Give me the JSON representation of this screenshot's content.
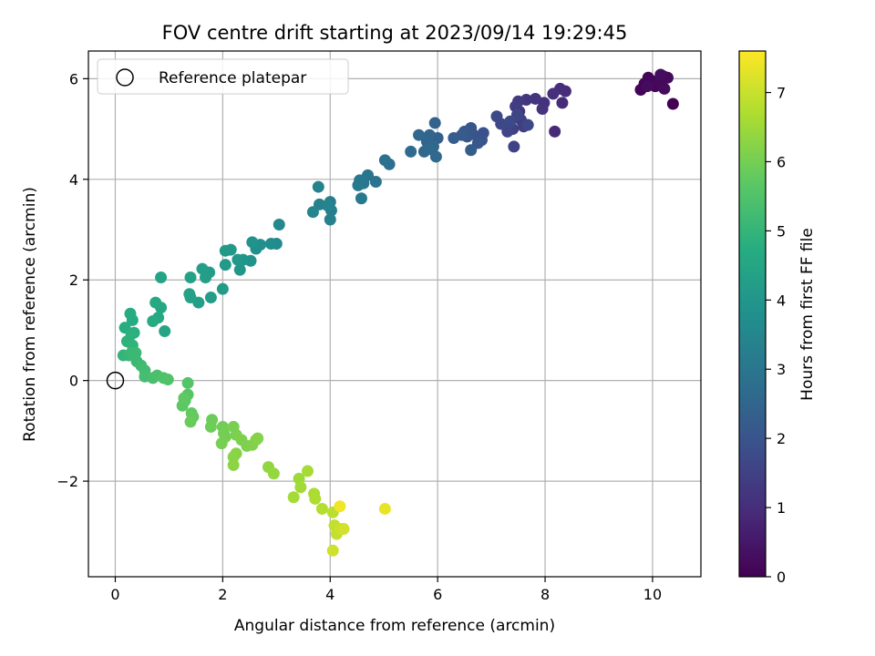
{
  "chart_data": {
    "type": "scatter",
    "title": "FOV centre drift starting at 2023/09/14 19:29:45",
    "xlabel": "Angular distance from reference (arcmin)",
    "ylabel": "Rotation from reference (arcmin)",
    "xlim": [
      -0.5,
      10.9
    ],
    "ylim": [
      -3.9,
      6.55
    ],
    "xticks": [
      0,
      2,
      4,
      6,
      8,
      10
    ],
    "yticks": [
      -2,
      0,
      2,
      4,
      6
    ],
    "xtick_labels": [
      "0",
      "2",
      "4",
      "6",
      "8",
      "10"
    ],
    "ytick_labels": [
      "−2",
      "0",
      "2",
      "4",
      "6"
    ],
    "grid": true,
    "legend": {
      "position": "top-left",
      "entries": [
        {
          "label": "Reference platepar",
          "marker": "hollow-circle"
        }
      ]
    },
    "reference_point": {
      "x": 0,
      "y": 0
    },
    "colorbar": {
      "label": "Hours from first FF file",
      "colormap": "viridis",
      "range": [
        0,
        7.6
      ],
      "ticks": [
        0,
        1,
        2,
        3,
        4,
        5,
        6,
        7
      ],
      "tick_labels": [
        "0",
        "1",
        "2",
        "3",
        "4",
        "5",
        "6",
        "7"
      ]
    },
    "series": [
      {
        "points": [
          {
            "x": 10.38,
            "y": 5.5,
            "c": 0.0
          },
          {
            "x": 9.78,
            "y": 5.78,
            "c": 0.05
          },
          {
            "x": 9.85,
            "y": 5.9,
            "c": 0.08
          },
          {
            "x": 9.92,
            "y": 6.02,
            "c": 0.1
          },
          {
            "x": 10.0,
            "y": 5.95,
            "c": 0.12
          },
          {
            "x": 10.05,
            "y": 5.85,
            "c": 0.14
          },
          {
            "x": 10.12,
            "y": 5.92,
            "c": 0.16
          },
          {
            "x": 10.2,
            "y": 6.05,
            "c": 0.18
          },
          {
            "x": 10.28,
            "y": 6.02,
            "c": 0.2
          },
          {
            "x": 10.22,
            "y": 5.8,
            "c": 0.22
          },
          {
            "x": 9.9,
            "y": 5.85,
            "c": 0.24
          },
          {
            "x": 10.15,
            "y": 6.08,
            "c": 0.26
          },
          {
            "x": 8.18,
            "y": 4.95,
            "c": 0.9
          },
          {
            "x": 8.32,
            "y": 5.52,
            "c": 0.95
          },
          {
            "x": 8.38,
            "y": 5.75,
            "c": 0.98
          },
          {
            "x": 8.28,
            "y": 5.8,
            "c": 1.0
          },
          {
            "x": 8.15,
            "y": 5.7,
            "c": 1.05
          },
          {
            "x": 7.98,
            "y": 5.52,
            "c": 1.1
          },
          {
            "x": 7.95,
            "y": 5.4,
            "c": 1.12
          },
          {
            "x": 7.82,
            "y": 5.6,
            "c": 1.15
          },
          {
            "x": 7.65,
            "y": 5.58,
            "c": 1.2
          },
          {
            "x": 7.52,
            "y": 5.35,
            "c": 1.25
          },
          {
            "x": 7.5,
            "y": 5.55,
            "c": 1.3
          },
          {
            "x": 7.45,
            "y": 5.45,
            "c": 1.35
          },
          {
            "x": 7.55,
            "y": 5.18,
            "c": 1.4
          },
          {
            "x": 7.6,
            "y": 5.05,
            "c": 1.45
          },
          {
            "x": 7.4,
            "y": 5.0,
            "c": 1.5
          },
          {
            "x": 7.42,
            "y": 4.65,
            "c": 1.55
          },
          {
            "x": 7.3,
            "y": 4.95,
            "c": 1.6
          },
          {
            "x": 7.18,
            "y": 5.1,
            "c": 1.65
          },
          {
            "x": 7.1,
            "y": 5.25,
            "c": 1.7
          },
          {
            "x": 7.48,
            "y": 5.28,
            "c": 1.62
          },
          {
            "x": 7.68,
            "y": 5.08,
            "c": 1.68
          },
          {
            "x": 7.35,
            "y": 5.15,
            "c": 1.72
          },
          {
            "x": 6.85,
            "y": 4.92,
            "c": 1.9
          },
          {
            "x": 6.82,
            "y": 4.78,
            "c": 1.95
          },
          {
            "x": 6.65,
            "y": 4.9,
            "c": 2.0
          },
          {
            "x": 6.62,
            "y": 5.02,
            "c": 2.05
          },
          {
            "x": 6.55,
            "y": 4.85,
            "c": 2.1
          },
          {
            "x": 6.5,
            "y": 4.95,
            "c": 2.15
          },
          {
            "x": 6.45,
            "y": 4.88,
            "c": 2.2
          },
          {
            "x": 6.62,
            "y": 4.58,
            "c": 2.25
          },
          {
            "x": 6.75,
            "y": 4.72,
            "c": 2.12
          },
          {
            "x": 6.3,
            "y": 4.82,
            "c": 2.3
          },
          {
            "x": 6.0,
            "y": 4.82,
            "c": 2.35
          },
          {
            "x": 5.95,
            "y": 5.12,
            "c": 2.4
          },
          {
            "x": 5.85,
            "y": 4.88,
            "c": 2.45
          },
          {
            "x": 5.8,
            "y": 4.75,
            "c": 2.5
          },
          {
            "x": 5.75,
            "y": 4.55,
            "c": 2.55
          },
          {
            "x": 5.65,
            "y": 4.88,
            "c": 2.6
          },
          {
            "x": 5.92,
            "y": 4.65,
            "c": 2.58
          },
          {
            "x": 5.97,
            "y": 4.45,
            "c": 2.62
          },
          {
            "x": 5.85,
            "y": 4.6,
            "c": 2.65
          },
          {
            "x": 5.5,
            "y": 4.55,
            "c": 2.7
          },
          {
            "x": 5.1,
            "y": 4.3,
            "c": 2.8
          },
          {
            "x": 5.02,
            "y": 4.38,
            "c": 2.85
          },
          {
            "x": 4.85,
            "y": 3.95,
            "c": 2.9
          },
          {
            "x": 4.7,
            "y": 4.08,
            "c": 2.95
          },
          {
            "x": 4.62,
            "y": 3.92,
            "c": 3.0
          },
          {
            "x": 4.55,
            "y": 3.98,
            "c": 3.05
          },
          {
            "x": 4.58,
            "y": 3.62,
            "c": 3.08
          },
          {
            "x": 4.52,
            "y": 3.88,
            "c": 3.1
          },
          {
            "x": 4.0,
            "y": 3.55,
            "c": 3.2
          },
          {
            "x": 4.02,
            "y": 3.38,
            "c": 3.25
          },
          {
            "x": 4.0,
            "y": 3.2,
            "c": 3.3
          },
          {
            "x": 3.8,
            "y": 3.5,
            "c": 3.35
          },
          {
            "x": 3.78,
            "y": 3.85,
            "c": 3.4
          },
          {
            "x": 3.68,
            "y": 3.35,
            "c": 3.45
          },
          {
            "x": 3.95,
            "y": 3.48,
            "c": 3.42
          },
          {
            "x": 3.05,
            "y": 3.1,
            "c": 3.6
          },
          {
            "x": 3.0,
            "y": 2.72,
            "c": 3.65
          },
          {
            "x": 2.9,
            "y": 2.72,
            "c": 3.7
          },
          {
            "x": 2.7,
            "y": 2.7,
            "c": 3.75
          },
          {
            "x": 2.62,
            "y": 2.62,
            "c": 3.8
          },
          {
            "x": 2.55,
            "y": 2.75,
            "c": 3.85
          },
          {
            "x": 2.52,
            "y": 2.38,
            "c": 3.9
          },
          {
            "x": 2.38,
            "y": 2.4,
            "c": 3.95
          },
          {
            "x": 2.32,
            "y": 2.2,
            "c": 4.0
          },
          {
            "x": 2.28,
            "y": 2.4,
            "c": 4.02
          },
          {
            "x": 2.15,
            "y": 2.6,
            "c": 4.05
          },
          {
            "x": 2.05,
            "y": 2.58,
            "c": 4.08
          },
          {
            "x": 2.05,
            "y": 2.3,
            "c": 4.1
          },
          {
            "x": 2.0,
            "y": 1.82,
            "c": 4.15
          },
          {
            "x": 1.78,
            "y": 1.65,
            "c": 4.2
          },
          {
            "x": 1.75,
            "y": 2.15,
            "c": 4.22
          },
          {
            "x": 1.68,
            "y": 2.05,
            "c": 4.25
          },
          {
            "x": 1.62,
            "y": 2.22,
            "c": 4.28
          },
          {
            "x": 1.55,
            "y": 1.55,
            "c": 4.3
          },
          {
            "x": 1.4,
            "y": 1.65,
            "c": 4.35
          },
          {
            "x": 1.38,
            "y": 1.72,
            "c": 4.38
          },
          {
            "x": 1.4,
            "y": 2.05,
            "c": 4.4
          },
          {
            "x": 0.85,
            "y": 2.05,
            "c": 4.45
          },
          {
            "x": 0.92,
            "y": 0.98,
            "c": 4.5
          },
          {
            "x": 0.85,
            "y": 1.45,
            "c": 4.55
          },
          {
            "x": 0.75,
            "y": 1.55,
            "c": 4.58
          },
          {
            "x": 0.8,
            "y": 1.25,
            "c": 4.6
          },
          {
            "x": 0.7,
            "y": 1.18,
            "c": 4.65
          },
          {
            "x": 0.32,
            "y": 1.2,
            "c": 4.7
          },
          {
            "x": 0.28,
            "y": 1.33,
            "c": 4.72
          },
          {
            "x": 0.18,
            "y": 1.05,
            "c": 4.75
          },
          {
            "x": 0.35,
            "y": 0.95,
            "c": 4.8
          },
          {
            "x": 0.3,
            "y": 0.92,
            "c": 4.85
          },
          {
            "x": 0.22,
            "y": 0.78,
            "c": 4.9
          },
          {
            "x": 0.32,
            "y": 0.7,
            "c": 4.95
          },
          {
            "x": 0.15,
            "y": 0.5,
            "c": 5.0
          },
          {
            "x": 0.25,
            "y": 0.5,
            "c": 5.05
          },
          {
            "x": 0.38,
            "y": 0.55,
            "c": 5.1
          },
          {
            "x": 0.3,
            "y": 0.55,
            "c": 5.12
          },
          {
            "x": 0.4,
            "y": 0.38,
            "c": 5.15
          },
          {
            "x": 0.48,
            "y": 0.3,
            "c": 5.2
          },
          {
            "x": 0.55,
            "y": 0.2,
            "c": 5.25
          },
          {
            "x": 0.55,
            "y": 0.08,
            "c": 5.3
          },
          {
            "x": 0.7,
            "y": 0.05,
            "c": 5.35
          },
          {
            "x": 0.78,
            "y": 0.1,
            "c": 5.4
          },
          {
            "x": 0.9,
            "y": 0.05,
            "c": 5.45
          },
          {
            "x": 0.98,
            "y": 0.02,
            "c": 5.5
          },
          {
            "x": 1.35,
            "y": -0.05,
            "c": 5.55
          },
          {
            "x": 1.35,
            "y": -0.28,
            "c": 5.6
          },
          {
            "x": 1.3,
            "y": -0.4,
            "c": 5.65
          },
          {
            "x": 1.25,
            "y": -0.5,
            "c": 5.7
          },
          {
            "x": 1.28,
            "y": -0.35,
            "c": 5.72
          },
          {
            "x": 1.42,
            "y": -0.65,
            "c": 5.75
          },
          {
            "x": 1.45,
            "y": -0.72,
            "c": 5.8
          },
          {
            "x": 1.4,
            "y": -0.82,
            "c": 5.85
          },
          {
            "x": 1.8,
            "y": -0.78,
            "c": 5.9
          },
          {
            "x": 1.78,
            "y": -0.92,
            "c": 5.92
          },
          {
            "x": 2.0,
            "y": -0.92,
            "c": 5.95
          },
          {
            "x": 2.02,
            "y": -1.05,
            "c": 5.98
          },
          {
            "x": 2.05,
            "y": -1.12,
            "c": 6.0
          },
          {
            "x": 1.98,
            "y": -1.25,
            "c": 6.02
          },
          {
            "x": 2.2,
            "y": -0.92,
            "c": 6.05
          },
          {
            "x": 2.25,
            "y": -1.08,
            "c": 6.08
          },
          {
            "x": 2.35,
            "y": -1.18,
            "c": 6.1
          },
          {
            "x": 2.45,
            "y": -1.3,
            "c": 6.12
          },
          {
            "x": 2.55,
            "y": -1.28,
            "c": 6.15
          },
          {
            "x": 2.62,
            "y": -1.18,
            "c": 6.18
          },
          {
            "x": 2.65,
            "y": -1.15,
            "c": 6.2
          },
          {
            "x": 2.25,
            "y": -1.45,
            "c": 6.22
          },
          {
            "x": 2.2,
            "y": -1.52,
            "c": 6.25
          },
          {
            "x": 2.2,
            "y": -1.68,
            "c": 6.28
          },
          {
            "x": 2.85,
            "y": -1.72,
            "c": 6.35
          },
          {
            "x": 2.95,
            "y": -1.85,
            "c": 6.4
          },
          {
            "x": 3.42,
            "y": -1.95,
            "c": 6.5
          },
          {
            "x": 3.45,
            "y": -2.12,
            "c": 6.55
          },
          {
            "x": 3.32,
            "y": -2.32,
            "c": 6.58
          },
          {
            "x": 3.58,
            "y": -1.8,
            "c": 6.6
          },
          {
            "x": 3.7,
            "y": -2.25,
            "c": 6.65
          },
          {
            "x": 3.72,
            "y": -2.35,
            "c": 6.7
          },
          {
            "x": 3.85,
            "y": -2.55,
            "c": 6.75
          },
          {
            "x": 4.05,
            "y": -2.62,
            "c": 6.85
          },
          {
            "x": 4.08,
            "y": -2.88,
            "c": 6.9
          },
          {
            "x": 4.12,
            "y": -3.05,
            "c": 6.95
          },
          {
            "x": 4.18,
            "y": -2.95,
            "c": 7.0
          },
          {
            "x": 4.05,
            "y": -3.38,
            "c": 7.05
          },
          {
            "x": 4.25,
            "y": -2.95,
            "c": 7.1
          },
          {
            "x": 4.18,
            "y": -2.5,
            "c": 7.45
          },
          {
            "x": 5.02,
            "y": -2.55,
            "c": 7.35
          }
        ]
      }
    ]
  }
}
